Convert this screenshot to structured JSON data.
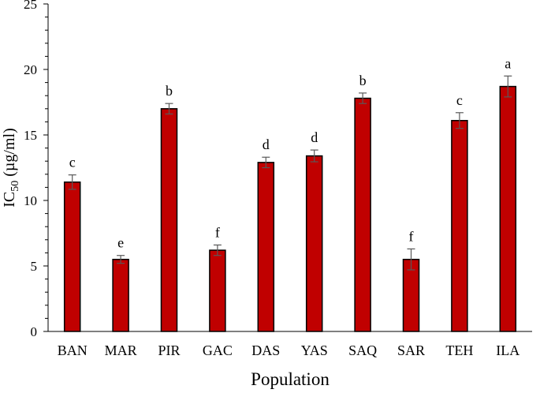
{
  "chart_data": {
    "type": "bar",
    "xlabel": "Population",
    "ylabel": {
      "main": "IC",
      "subscript": "50",
      "unit": " (µg/ml)"
    },
    "ylim": [
      0,
      25
    ],
    "yticks": [
      0,
      5,
      10,
      15,
      20,
      25
    ],
    "minor_tick_step": 1,
    "grid": false,
    "legend": "none",
    "bar_color": "#c00000",
    "bar_edge_color": "#000000",
    "errorbar_color": "#595959",
    "categories": [
      "BAN",
      "MAR",
      "PIR",
      "GAC",
      "DAS",
      "YAS",
      "SAQ",
      "SAR",
      "TEH",
      "ILA"
    ],
    "values": [
      11.4,
      5.5,
      17.0,
      6.2,
      12.9,
      13.4,
      17.8,
      5.5,
      16.1,
      18.7
    ],
    "errors": [
      0.55,
      0.3,
      0.4,
      0.4,
      0.4,
      0.45,
      0.4,
      0.8,
      0.6,
      0.8
    ],
    "significance_letters": [
      "c",
      "e",
      "b",
      "f",
      "d",
      "d",
      "b",
      "f",
      "c",
      "a"
    ]
  }
}
